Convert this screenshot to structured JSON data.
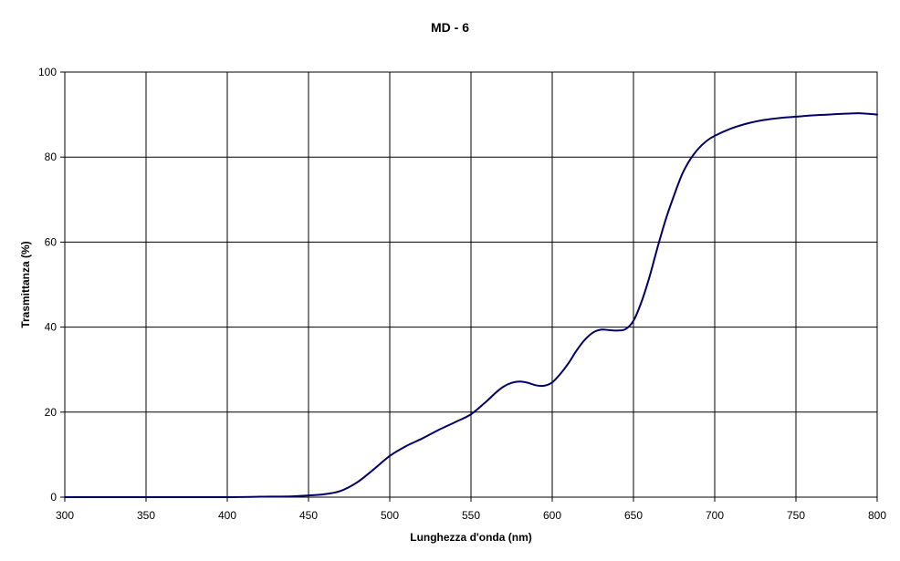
{
  "chart_data": {
    "type": "line",
    "title": "MD - 6",
    "xlabel": "Lunghezza d'onda   (nm)",
    "ylabel": "Trasmittanza    (%)",
    "xlim": [
      300,
      800
    ],
    "ylim": [
      0,
      100
    ],
    "xticks": [
      300,
      350,
      400,
      450,
      500,
      550,
      600,
      650,
      700,
      750,
      800
    ],
    "yticks": [
      0,
      20,
      40,
      60,
      80,
      100
    ],
    "xtick_labels": [
      "300",
      "350",
      "400",
      "450",
      "500",
      "550",
      "600",
      "650",
      "700",
      "750",
      "800"
    ],
    "ytick_labels": [
      "0",
      "20",
      "40",
      "60",
      "80",
      "100"
    ],
    "grid": true,
    "line_color": "#000066",
    "grid_color": "#000000",
    "series": [
      {
        "x": [
          300,
          350,
          400,
          420,
          440,
          450,
          460,
          470,
          480,
          490,
          500,
          510,
          520,
          530,
          540,
          550,
          560,
          565,
          570,
          575,
          580,
          585,
          590,
          595,
          600,
          605,
          610,
          615,
          620,
          625,
          630,
          635,
          640,
          645,
          650,
          655,
          660,
          665,
          670,
          675,
          680,
          685,
          690,
          695,
          700,
          710,
          720,
          730,
          740,
          750,
          760,
          770,
          780,
          790,
          800
        ],
        "y": [
          0.0,
          0.0,
          0.0,
          0.1,
          0.2,
          0.4,
          0.7,
          1.5,
          3.5,
          6.5,
          9.7,
          12.0,
          13.8,
          15.8,
          17.6,
          19.5,
          22.7,
          24.5,
          26.0,
          26.9,
          27.2,
          26.9,
          26.3,
          26.2,
          27.0,
          29.0,
          31.5,
          34.5,
          37.0,
          38.7,
          39.4,
          39.3,
          39.2,
          39.5,
          41.5,
          46.0,
          52.0,
          59.0,
          65.5,
          71.0,
          76.0,
          79.5,
          82.0,
          83.8,
          85.0,
          86.7,
          87.9,
          88.7,
          89.2,
          89.5,
          89.8,
          90.0,
          90.2,
          90.3,
          90.0
        ]
      }
    ]
  }
}
